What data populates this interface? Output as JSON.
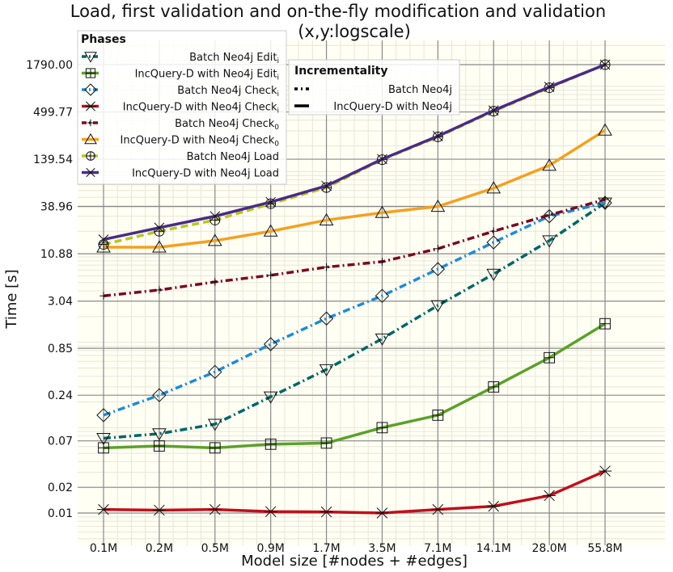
{
  "chart_data": {
    "type": "line",
    "title_line1": "Load, first validation and on-the-fly modification and validation",
    "title_line2": "(x,y:logscale)",
    "xlabel": "Model size [#nodes + #edges]",
    "ylabel": "Time [s]",
    "categories": [
      "0.1M",
      "0.2M",
      "0.5M",
      "0.9M",
      "1.7M",
      "3.5M",
      "7.1M",
      "14.1M",
      "28.0M",
      "55.8M"
    ],
    "y_scale": "log",
    "ylim": [
      0.0075,
      3000
    ],
    "y_ticks": [
      "0.01",
      "0.02",
      "0.07",
      "0.24",
      "0.85",
      "3.04",
      "10.88",
      "38.96",
      "139.54",
      "499.77",
      "1790.00"
    ],
    "y_tick_values": [
      0.01,
      0.02,
      0.07,
      0.24,
      0.85,
      3.04,
      10.88,
      38.96,
      139.54,
      499.77,
      1790.0
    ],
    "grid": true,
    "legend_phases": {
      "title": "Phases",
      "placement": "top-left"
    },
    "legend_incrementality": {
      "title": "Incrementality",
      "placement": "top-center",
      "items": [
        {
          "label": "Batch Neo4j",
          "dash": "dashdot"
        },
        {
          "label": "IncQuery-D with Neo4j",
          "dash": "solid"
        }
      ]
    },
    "series": [
      {
        "name": "Batch Neo4j Edit",
        "sub": "i",
        "color": "#006666",
        "marker": "triangle-down",
        "dash": "dashdot",
        "values": [
          0.075,
          0.085,
          0.11,
          0.23,
          0.48,
          1.1,
          2.7,
          6.3,
          15.5,
          43
        ]
      },
      {
        "name": "IncQuery-D with Neo4j Edit",
        "sub": "i",
        "color": "#5ba12a",
        "marker": "square",
        "dash": "solid",
        "values": [
          0.058,
          0.061,
          0.058,
          0.064,
          0.066,
          0.1,
          0.14,
          0.3,
          0.66,
          1.65
        ]
      },
      {
        "name": "Batch Neo4j Check",
        "sub": "i",
        "color": "#1f8bd6",
        "marker": "diamond",
        "dash": "dashdot",
        "values": [
          0.14,
          0.24,
          0.45,
          0.95,
          1.9,
          3.5,
          7.2,
          14.8,
          30,
          43
        ]
      },
      {
        "name": "IncQuery-D with Neo4j Check",
        "sub": "i",
        "color": "#c0101a",
        "marker": "star",
        "dash": "solid",
        "values": [
          0.011,
          0.0108,
          0.011,
          0.0104,
          0.0103,
          0.01,
          0.011,
          0.012,
          0.016,
          0.031
        ]
      },
      {
        "name": "Batch Neo4j Check",
        "sub": "0",
        "color": "#7a0a24",
        "marker": "plus",
        "dash": "dashdot",
        "values": [
          3.5,
          4.1,
          5.1,
          6.1,
          7.6,
          8.8,
          12.5,
          20,
          31,
          47
        ]
      },
      {
        "name": "IncQuery-D with Neo4j Check",
        "sub": "0",
        "color": "#f5a020",
        "marker": "triangle-up",
        "dash": "solid",
        "values": [
          13,
          13,
          15.5,
          20,
          27,
          33,
          39,
          64,
          118,
          305
        ]
      },
      {
        "name": "Batch Neo4j Load",
        "sub": "",
        "color": "#b5c81e",
        "marker": "circle-plus",
        "dash": "dashed",
        "values": [
          14,
          20,
          27,
          42,
          65,
          138,
          255,
          510,
          960,
          1790
        ]
      },
      {
        "name": "IncQuery-D with Neo4j Load",
        "sub": "",
        "color": "#4b2a88",
        "marker": "x",
        "dash": "solid",
        "values": [
          16,
          22,
          30,
          44,
          68,
          140,
          260,
          520,
          980,
          1790
        ]
      }
    ]
  }
}
